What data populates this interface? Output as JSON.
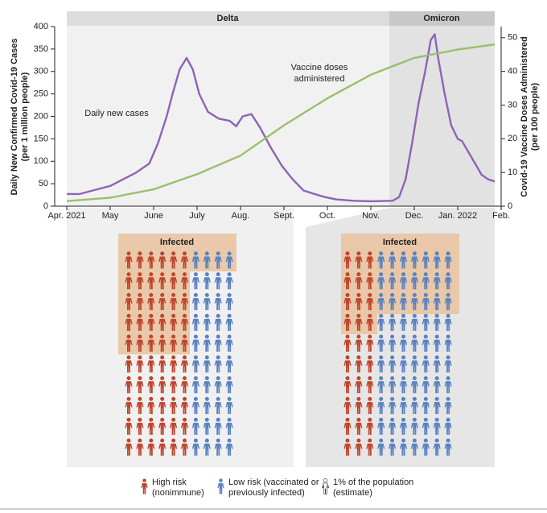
{
  "chart_data": {
    "type": "line",
    "phases": [
      "Delta",
      "Omicron"
    ],
    "ylabel": [
      "Daily New Confirmed Covid-19 Cases",
      "(per 1 million people)"
    ],
    "y2label": [
      "Covid-19 Vaccine Doses Administered",
      "(per 100 people)"
    ],
    "annotations": [
      "Daily new cases",
      "Vaccine doses",
      "administered"
    ],
    "xlim": [
      0,
      10
    ],
    "xticks": [
      {
        "value": 0,
        "label": "Apr. 2021"
      },
      {
        "value": 1,
        "label": "May"
      },
      {
        "value": 2,
        "label": "June"
      },
      {
        "value": 3,
        "label": "July"
      },
      {
        "value": 4,
        "label": "Aug."
      },
      {
        "value": 5,
        "label": "Sept."
      },
      {
        "value": 6,
        "label": "Oct."
      },
      {
        "value": 7,
        "label": "Nov."
      },
      {
        "value": 8,
        "label": "Dec."
      },
      {
        "value": 9,
        "label": "Jan. 2022"
      },
      {
        "value": 10,
        "label": "Feb."
      }
    ],
    "ylim": [
      0,
      400
    ],
    "yticks": [
      0,
      50,
      100,
      150,
      200,
      250,
      300,
      350,
      400
    ],
    "y2lim": [
      0,
      53.3
    ],
    "y2ticks": [
      0,
      10,
      20,
      30,
      40,
      50
    ],
    "series": [
      {
        "color": "#8e63b5",
        "x": [
          0,
          0.3,
          0.6,
          1.0,
          1.3,
          1.6,
          1.9,
          2.1,
          2.3,
          2.45,
          2.6,
          2.76,
          2.9,
          3.05,
          3.25,
          3.5,
          3.75,
          3.9,
          4.05,
          4.25,
          4.45,
          4.7,
          4.95,
          5.2,
          5.45,
          5.7,
          5.95,
          6.2,
          6.6,
          7.0,
          7.5,
          7.65,
          7.8,
          7.95,
          8.1,
          8.25,
          8.38,
          8.47,
          8.55,
          8.7,
          8.85,
          9.0,
          9.1,
          9.25,
          9.4,
          9.55,
          9.7,
          9.85
        ],
        "values": [
          27,
          27,
          35,
          45,
          60,
          75,
          95,
          140,
          200,
          255,
          305,
          330,
          305,
          250,
          210,
          195,
          190,
          178,
          200,
          205,
          175,
          130,
          90,
          60,
          35,
          27,
          20,
          15,
          12,
          11,
          12,
          20,
          60,
          140,
          230,
          300,
          370,
          383,
          330,
          250,
          180,
          150,
          145,
          120,
          95,
          70,
          60,
          55
        ]
      },
      {
        "color": "#9bbf6a",
        "axis": "y2",
        "x": [
          0,
          1,
          2,
          3,
          4,
          5,
          6,
          7,
          8,
          9,
          9.85
        ],
        "values": [
          1.5,
          2.5,
          5,
          9.5,
          15,
          24,
          32,
          39,
          44,
          46.5,
          48
        ]
      }
    ]
  },
  "panels": [
    {
      "label": "Infected"
    },
    {
      "label": "Infected"
    }
  ],
  "legend": [
    {
      "lines": [
        "High risk",
        "(nonimmune)"
      ]
    },
    {
      "lines": [
        "Low risk (vaccinated or",
        "previously infected)"
      ]
    },
    {
      "lines": [
        "1% of the population",
        "(estimate)"
      ]
    }
  ]
}
